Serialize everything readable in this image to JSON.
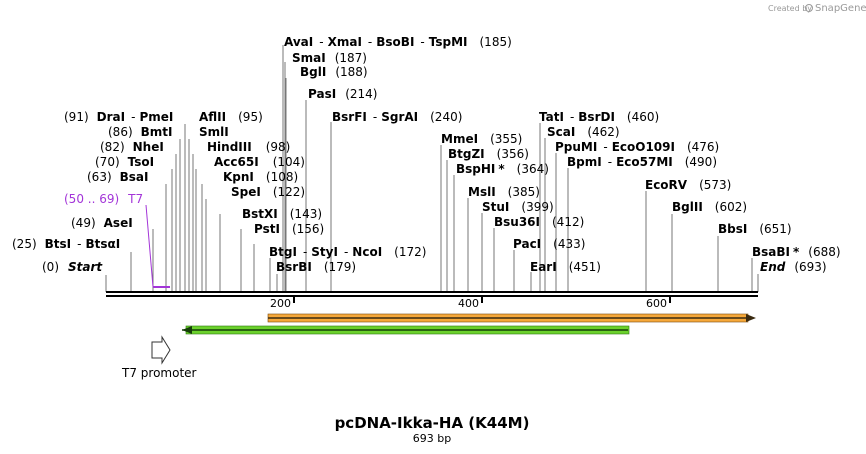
{
  "title": "pcDNA-Ikka-HA (K44M)",
  "subtitle": "693 bp",
  "credit": {
    "prefix": "Created by",
    "brand": "SnapGene"
  },
  "ruler": {
    "ticks": [
      "200",
      "400",
      "600"
    ]
  },
  "features": {
    "t7_promoter": "T7 promoter",
    "t7_site": {
      "range": "(50 .. 69)",
      "name": "T7"
    }
  },
  "colors": {
    "t7": "#a335d8",
    "orange_feature": "#f6a83a",
    "green_feature": "#6bd12c"
  },
  "left_labels": [
    {
      "id": "ava",
      "name": "AvaI",
      "sep1": "-",
      "name2": "XmaI",
      "sep2": "-",
      "name3": "BsoBI",
      "sep3": "-",
      "name4": "TspMI",
      "pos": "(185)"
    },
    {
      "id": "sma",
      "name": "SmaI",
      "pos": "(187)"
    },
    {
      "id": "bgl",
      "name": "BglI",
      "pos": "(188)"
    },
    {
      "id": "pas",
      "name": "PasI",
      "pos": "(214)"
    },
    {
      "id": "bsrfi",
      "name": "BsrFI",
      "sep": "-",
      "name2": "SgrAI",
      "pos": "(240)"
    },
    {
      "id": "dra",
      "pos": "(91)",
      "name": "DraI",
      "sep": "-",
      "name2": "PmeI"
    },
    {
      "id": "afl",
      "name": "AflII",
      "pos": "(95)"
    },
    {
      "id": "bmt",
      "pos": "(86)",
      "name": "BmtI"
    },
    {
      "id": "sml",
      "name": "SmlI"
    },
    {
      "id": "nhe",
      "pos": "(82)",
      "name": "NheI"
    },
    {
      "id": "hind",
      "name": "HindIII",
      "pos": "(98)"
    },
    {
      "id": "tso",
      "pos": "(70)",
      "name": "TsoI"
    },
    {
      "id": "acc",
      "name": "Acc65I",
      "pos": "(104)"
    },
    {
      "id": "bsa",
      "pos": "(63)",
      "name": "BsaI"
    },
    {
      "id": "kpn",
      "name": "KpnI",
      "pos": "(108)"
    },
    {
      "id": "spe",
      "name": "SpeI",
      "pos": "(122)"
    },
    {
      "id": "bstx",
      "name": "BstXI",
      "pos": "(143)"
    },
    {
      "id": "ase",
      "pos": "(49)",
      "name": "AseI"
    },
    {
      "id": "pst",
      "name": "PstI",
      "pos": "(156)"
    },
    {
      "id": "bts",
      "pos": "(25)",
      "name": "BtsI",
      "sep": "-",
      "name2": "BtsαI"
    },
    {
      "id": "btg",
      "name": "BtgI",
      "sep1": "-",
      "name2": "StyI",
      "sep2": "-",
      "name3": "NcoI",
      "pos": "(172)"
    },
    {
      "id": "start",
      "pos": "(0)",
      "name": "Start"
    },
    {
      "id": "bsrbi",
      "name": "BsrBI",
      "pos": "(179)"
    }
  ],
  "right_labels": [
    {
      "id": "mme",
      "name": "MmeI",
      "pos": "(355)"
    },
    {
      "id": "btgz",
      "name": "BtgZI",
      "pos": "(356)"
    },
    {
      "id": "bsph",
      "name": "BspHI",
      "mark": "*",
      "pos": "(364)"
    },
    {
      "id": "msl",
      "name": "MslI",
      "pos": "(385)"
    },
    {
      "id": "stu",
      "name": "StuI",
      "pos": "(399)"
    },
    {
      "id": "bsu",
      "name": "Bsu36I",
      "pos": "(412)"
    },
    {
      "id": "pac",
      "name": "PacI",
      "pos": "(433)"
    },
    {
      "id": "ear",
      "name": "EarI",
      "pos": "(451)"
    },
    {
      "id": "tat",
      "name": "TatI",
      "sep": "-",
      "name2": "BsrDI",
      "pos": "(460)"
    },
    {
      "id": "sca",
      "name": "ScaI",
      "pos": "(462)"
    },
    {
      "id": "ppu",
      "name": "PpuMI",
      "sep": "-",
      "name2": "EcoO109I",
      "pos": "(476)"
    },
    {
      "id": "bpm",
      "name": "BpmI",
      "sep": "-",
      "name2": "Eco57MI",
      "pos": "(490)"
    },
    {
      "id": "ecorv",
      "name": "EcoRV",
      "pos": "(573)"
    },
    {
      "id": "bgl2",
      "name": "BglII",
      "pos": "(602)"
    },
    {
      "id": "bbs",
      "name": "BbsI",
      "pos": "(651)"
    },
    {
      "id": "bsab",
      "name": "BsaBI",
      "mark": "*",
      "pos": "(688)"
    },
    {
      "id": "end",
      "name": "End",
      "pos": "(693)"
    }
  ]
}
